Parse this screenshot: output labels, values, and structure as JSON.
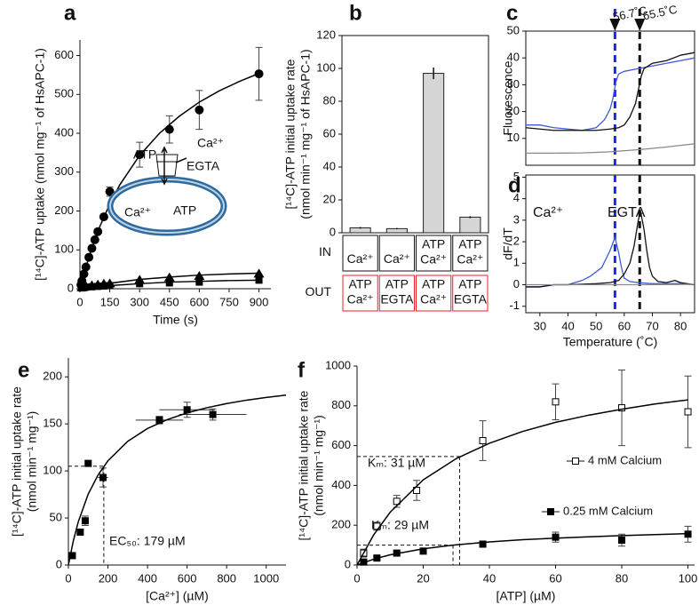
{
  "chart_data": [
    {
      "type": "scatter",
      "panel_label": "a",
      "xlabel": "Time (s)",
      "ylabel": [
        "[¹⁴C]-ATP uptake (nmol mg⁻¹ of HsAPC-1)"
      ],
      "xlim": [
        0,
        960
      ],
      "ylim": [
        0,
        640
      ],
      "xticks": [
        0,
        150,
        300,
        450,
        600,
        750,
        900
      ],
      "yticks": [
        0,
        100,
        200,
        300,
        400,
        500,
        600
      ],
      "series": [
        {
          "color": "#000000",
          "marker": "circle",
          "x": [
            5,
            10,
            20,
            30,
            45,
            60,
            75,
            90,
            120,
            150,
            300,
            450,
            600,
            900
          ],
          "values": [
            10,
            20,
            38,
            56,
            81,
            104,
            126,
            147,
            185,
            250,
            345,
            410,
            460,
            553
          ],
          "errors": [
            0,
            0,
            0,
            0,
            0,
            0,
            0,
            0,
            0,
            12,
            32,
            35,
            50,
            68
          ]
        },
        {
          "color": "#000000",
          "marker": "triangle",
          "x": [
            10,
            20,
            30,
            60,
            90,
            120,
            150,
            300,
            450,
            600,
            900
          ],
          "values": [
            3,
            5,
            6,
            8,
            10,
            12,
            13,
            22,
            28,
            32,
            38
          ]
        },
        {
          "color": "#000000",
          "marker": "square",
          "x": [
            10,
            20,
            30,
            60,
            90,
            120,
            150,
            300,
            450,
            600,
            900
          ],
          "values": [
            2,
            3,
            4,
            5,
            6,
            7,
            8,
            13,
            15,
            17,
            22
          ]
        },
        {
          "color": "#000000",
          "line": true,
          "x": [
            0,
            25,
            50,
            100,
            150,
            200,
            300,
            400,
            500,
            600,
            700,
            800,
            900
          ],
          "values": [
            0,
            47,
            89,
            160,
            218,
            267,
            343,
            400,
            444,
            480,
            509,
            533,
            554
          ]
        },
        {
          "color": "#000000",
          "line": true,
          "x": [
            0,
            150,
            300,
            450,
            600,
            750,
            900
          ],
          "values": [
            0,
            14,
            24,
            30,
            35,
            38,
            40
          ]
        },
        {
          "color": "#000000",
          "line": true,
          "x": [
            0,
            150,
            300,
            450,
            600,
            750,
            900
          ],
          "values": [
            0,
            8,
            13,
            17,
            19,
            21,
            22
          ]
        }
      ],
      "inset": {
        "labels": [
          "ATP",
          "Ca²⁺",
          "EGTA",
          "Ca²⁺",
          "ATP"
        ],
        "label_colors": [
          "#e8202a",
          "#111111",
          "#111111",
          "#111111",
          "#111111"
        ],
        "vesicle_color": "#2e6a9e"
      }
    },
    {
      "type": "bar",
      "panel_label": "b",
      "ylabel": [
        "[¹⁴C]-ATP initial uptake rate",
        "(nmol min⁻¹ mg⁻¹ of HsAPC-1)"
      ],
      "ylim": [
        0,
        120
      ],
      "yticks": [
        0,
        20,
        40,
        60,
        80,
        100,
        120
      ],
      "color": "#d6d6d6",
      "values": [
        3,
        2.5,
        97,
        9.5
      ],
      "errors": [
        0.5,
        0.4,
        3.5,
        0.6
      ],
      "table": {
        "row_labels": [
          "IN",
          "OUT"
        ],
        "rows": [
          [
            [
              "Ca²⁺"
            ],
            [
              "Ca²⁺"
            ],
            [
              "ATP",
              "Ca²⁺"
            ],
            [
              "ATP",
              "Ca²⁺"
            ]
          ],
          [
            [
              "ATP",
              "Ca²⁺"
            ],
            [
              "ATP",
              "EGTA"
            ],
            [
              "ATP",
              "Ca²⁺"
            ],
            [
              "ATP",
              "EGTA"
            ]
          ]
        ],
        "out_color": "#e8202a"
      }
    },
    {
      "type": "line",
      "panel_label": "c",
      "ylabel": [
        "Fluorescence"
      ],
      "xlim": [
        25,
        85
      ],
      "ylim": [
        0,
        50
      ],
      "yticks": [
        10,
        20,
        30,
        40,
        50
      ],
      "series": [
        {
          "color": "#3d5bd9",
          "x": [
            25,
            30,
            35,
            40,
            45,
            50,
            53,
            55,
            56,
            57,
            58,
            60,
            65,
            70,
            75,
            80,
            85
          ],
          "values": [
            15,
            15,
            14,
            13.5,
            13,
            14,
            17,
            21,
            25,
            31,
            34,
            35,
            36,
            37,
            38,
            39,
            40
          ]
        },
        {
          "color": "#111111",
          "x": [
            25,
            30,
            35,
            40,
            45,
            50,
            55,
            58,
            60,
            62,
            64,
            65,
            66,
            67,
            70,
            75,
            80,
            85
          ],
          "values": [
            14,
            13.5,
            13,
            13,
            13,
            13,
            13.5,
            14,
            15,
            18,
            23,
            28,
            33,
            36,
            38,
            39,
            41,
            42
          ]
        },
        {
          "color": "#888888",
          "x": [
            25,
            35,
            45,
            55,
            65,
            75,
            85
          ],
          "values": [
            4.5,
            4.5,
            4.6,
            5,
            5.8,
            6.8,
            8
          ]
        }
      ],
      "vlines": [
        {
          "value": 56.7,
          "label": "56.7˚C"
        },
        {
          "value": 65.5,
          "label": "65.5˚C"
        }
      ],
      "vline_colors": [
        "#2222ee",
        "#111111"
      ]
    },
    {
      "type": "line",
      "panel_label": "d",
      "xlabel": "Temperature (˚C)",
      "ylabel": [
        "dF/dT"
      ],
      "xlim": [
        25,
        85
      ],
      "ylim": [
        -1.3,
        5.1
      ],
      "xticks": [
        30,
        40,
        50,
        60,
        70,
        80
      ],
      "yticks": [
        -1,
        0,
        1,
        2,
        3,
        4,
        5
      ],
      "series": [
        {
          "color": "#3d5bd9",
          "x": [
            25,
            30,
            35,
            40,
            45,
            48,
            52,
            55,
            56.7,
            58,
            59,
            60,
            62,
            65,
            70,
            75,
            80,
            85
          ],
          "values": [
            -0.1,
            -0.1,
            0,
            0,
            0.2,
            0.4,
            0.8,
            1.6,
            2.2,
            1.5,
            0.8,
            0.3,
            0.15,
            0.1,
            0.05,
            0.05,
            0.05,
            0
          ]
        },
        {
          "color": "#111111",
          "x": [
            25,
            30,
            35,
            40,
            50,
            55,
            58,
            60,
            62,
            63.5,
            65,
            65.8,
            67,
            68,
            69,
            70,
            72,
            75,
            78,
            80,
            85
          ],
          "values": [
            -0.1,
            -0.1,
            0,
            0,
            0.05,
            0.1,
            0.2,
            0.5,
            1,
            1.8,
            3,
            3.4,
            2.6,
            1.6,
            0.8,
            0.4,
            0.15,
            0.1,
            0.2,
            0.1,
            0
          ]
        },
        {
          "color": "#888888",
          "x": [
            25,
            45,
            65,
            85
          ],
          "values": [
            0,
            0,
            0,
            0.02
          ]
        }
      ],
      "vlines": [
        {
          "value": 56.7
        },
        {
          "value": 65.5
        }
      ],
      "vline_colors": [
        "#2222ee",
        "#111111"
      ],
      "annotations": [
        "Ca²⁺",
        "EGTA"
      ],
      "annotation_colors": [
        "#3d5bd9",
        "#111111"
      ]
    },
    {
      "type": "scatter",
      "panel_label": "e",
      "xlabel": "[Ca²⁺] (µM)",
      "ylabel": [
        "[¹⁴C]-ATP initial uptake rate",
        "(nmol min⁻¹ mg⁻¹)"
      ],
      "xlim": [
        0,
        1100
      ],
      "ylim": [
        0,
        220
      ],
      "xticks": [
        0,
        200,
        400,
        600,
        800,
        1000
      ],
      "yticks": [
        0,
        50,
        100,
        150,
        200
      ],
      "series": [
        {
          "color": "#000000",
          "marker": "square",
          "x": [
            20,
            60,
            85,
            100,
            175,
            460,
            600,
            730
          ],
          "values": [
            10,
            35,
            47,
            108,
            93,
            154,
            165,
            160
          ],
          "errors": [
            2,
            3,
            5,
            3,
            10,
            4,
            8,
            6
          ],
          "x_errors": [
            0,
            0,
            0,
            0,
            25,
            120,
            140,
            170
          ]
        },
        {
          "color": "#000000",
          "line": true,
          "x": [
            0,
            25,
            50,
            100,
            150,
            200,
            300,
            400,
            500,
            600,
            700,
            800,
            900,
            1000,
            1100
          ],
          "values": [
            0,
            25.7,
            45.9,
            75.3,
            95.7,
            110.8,
            131.5,
            145.1,
            154.6,
            161.7,
            167.2,
            171.6,
            175.2,
            178.1,
            180.6
          ]
        }
      ],
      "guides": [
        {
          "value": 179,
          "level": 105,
          "label": "EC₅₀: 179 µM"
        }
      ]
    },
    {
      "type": "scatter",
      "panel_label": "f",
      "xlabel": "[ATP] (µM)",
      "ylabel": [
        "[¹⁴C]-ATP initial uptake rate",
        "(nmol min⁻¹ mg⁻¹)"
      ],
      "xlim": [
        0,
        102
      ],
      "ylim": [
        0,
        1000
      ],
      "xticks": [
        0,
        20,
        40,
        60,
        80,
        100
      ],
      "yticks": [
        0,
        200,
        400,
        600,
        800,
        1000
      ],
      "series": [
        {
          "name": "4 mM Calcium",
          "color": "#000000",
          "marker": "square-open",
          "x": [
            2,
            6,
            12,
            18,
            38,
            60,
            80,
            100
          ],
          "values": [
            60,
            195,
            320,
            375,
            625,
            820,
            790,
            770
          ],
          "errors": [
            20,
            20,
            30,
            50,
            100,
            90,
            190,
            180
          ]
        },
        {
          "name": "0.25 mM Calcium",
          "color": "#000000",
          "marker": "square",
          "x": [
            2,
            6,
            12,
            20,
            38,
            60,
            80,
            100
          ],
          "values": [
            15,
            35,
            60,
            70,
            105,
            140,
            125,
            155
          ],
          "errors": [
            5,
            10,
            10,
            15,
            15,
            25,
            30,
            40
          ]
        },
        {
          "color": "#000000",
          "line": true,
          "x": [
            0,
            5,
            10,
            20,
            30,
            40,
            50,
            60,
            70,
            80,
            90,
            100
          ],
          "values": [
            0,
            151,
            265,
            428,
            535,
            612,
            671,
            717,
            753,
            783,
            809,
            830
          ]
        },
        {
          "color": "#000000",
          "line": true,
          "x": [
            0,
            5,
            10,
            20,
            30,
            40,
            50,
            60,
            70,
            80,
            90,
            100
          ],
          "values": [
            0,
            29.4,
            51.3,
            81.6,
            101.7,
            116,
            127,
            135,
            142,
            148,
            153,
            158
          ]
        }
      ],
      "guides": [
        {
          "value": 31,
          "level": 545,
          "label": "Kₘ: 31 µM"
        },
        {
          "value": 29,
          "level": 100,
          "label": "Kₘ: 29 µM"
        }
      ]
    }
  ]
}
